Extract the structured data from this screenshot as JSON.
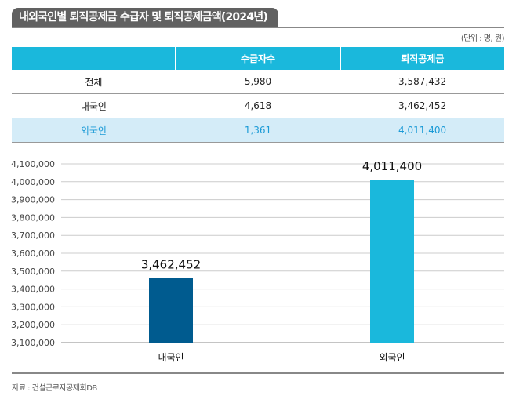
{
  "title": "내외국인별 퇴직공제금 수급자 및 퇴직공제금액(2024년)",
  "unit": "(단위 : 명, 원)",
  "table": {
    "headers": [
      "",
      "수급자수",
      "퇴직공제금"
    ],
    "rows": [
      [
        "전체",
        "5,980",
        "3,587,432"
      ],
      [
        "내국인",
        "4,618",
        "3,462,452"
      ],
      [
        "외국인",
        "1,361",
        "4,011,400"
      ]
    ]
  },
  "chart_data": {
    "type": "bar",
    "categories": [
      "내국인",
      "외국인"
    ],
    "values": [
      3462452,
      4011400
    ],
    "data_labels": [
      "3,462,452",
      "4,011,400"
    ],
    "ylim": [
      3100000,
      4100000
    ],
    "yticks": [
      "3,100,000",
      "3,200,000",
      "3,300,000",
      "3,400,000",
      "3,500,000",
      "3,600,000",
      "3,700,000",
      "3,800,000",
      "3,900,000",
      "4,000,000",
      "4,100,000"
    ],
    "grid": true,
    "colors": [
      "#005b8f",
      "#1ab8dc"
    ]
  },
  "source": "자료 : 건설근로자공제회DB"
}
